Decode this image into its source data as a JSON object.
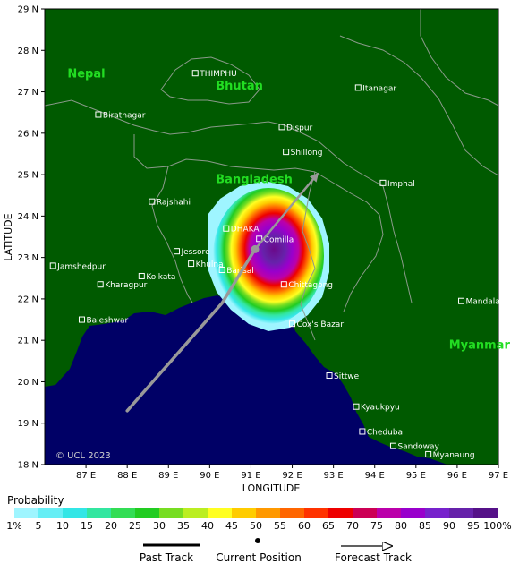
{
  "axes": {
    "ylabel": "LATITUDE",
    "xlabel": "LONGITUDE",
    "lat_ticks": [
      "29 N",
      "28 N",
      "27 N",
      "26 N",
      "25 N",
      "24 N",
      "23 N",
      "22 N",
      "21 N",
      "20 N",
      "19 N",
      "18 N"
    ],
    "lon_ticks": [
      "87 E",
      "88 E",
      "89 E",
      "90 E",
      "91 E",
      "92 E",
      "93 E",
      "94 E",
      "95 E",
      "96 E",
      "97 E"
    ]
  },
  "countries": [
    {
      "name": "Nepal",
      "lon": 86.55,
      "lat": 27.35
    },
    {
      "name": "Bhutan",
      "lon": 90.15,
      "lat": 27.05
    },
    {
      "name": "Bangladesh",
      "lon": 90.15,
      "lat": 24.8
    },
    {
      "name": "Myanmar",
      "lon": 95.8,
      "lat": 20.8
    }
  ],
  "cities": [
    {
      "name": "THIMPHU",
      "lon": 89.65,
      "lat": 27.45
    },
    {
      "name": "Itanagar",
      "lon": 93.6,
      "lat": 27.1
    },
    {
      "name": "Biratnagar",
      "lon": 87.3,
      "lat": 26.45
    },
    {
      "name": "Dispur",
      "lon": 91.75,
      "lat": 26.15
    },
    {
      "name": "Shillong",
      "lon": 91.85,
      "lat": 25.55
    },
    {
      "name": "Imphal",
      "lon": 94.2,
      "lat": 24.8
    },
    {
      "name": "Rajshahi",
      "lon": 88.6,
      "lat": 24.35
    },
    {
      "name": "DHAKA",
      "lon": 90.4,
      "lat": 23.7
    },
    {
      "name": "Comilla",
      "lon": 91.2,
      "lat": 23.45
    },
    {
      "name": "Jessore",
      "lon": 89.2,
      "lat": 23.15
    },
    {
      "name": "Khulna",
      "lon": 89.55,
      "lat": 22.85
    },
    {
      "name": "Barisal",
      "lon": 90.3,
      "lat": 22.7
    },
    {
      "name": "Jamshedpur",
      "lon": 86.2,
      "lat": 22.8
    },
    {
      "name": "Kolkata",
      "lon": 88.35,
      "lat": 22.55
    },
    {
      "name": "Kharagpur",
      "lon": 87.35,
      "lat": 22.35
    },
    {
      "name": "Chittagong",
      "lon": 91.8,
      "lat": 22.35
    },
    {
      "name": "Mandalay",
      "lon": 96.1,
      "lat": 21.95
    },
    {
      "name": "Baleshwar",
      "lon": 86.9,
      "lat": 21.5
    },
    {
      "name": "Cox's Bazar",
      "lon": 92.0,
      "lat": 21.4
    },
    {
      "name": "Sittwe",
      "lon": 92.9,
      "lat": 20.15
    },
    {
      "name": "Kyaukpyu",
      "lon": 93.55,
      "lat": 19.4
    },
    {
      "name": "Cheduba",
      "lon": 93.7,
      "lat": 18.8
    },
    {
      "name": "Sandoway",
      "lon": 94.45,
      "lat": 18.45
    },
    {
      "name": "Myanaung",
      "lon": 95.3,
      "lat": 18.25
    }
  ],
  "track": {
    "past": [
      [
        88.0,
        19.3
      ],
      [
        90.3,
        21.9
      ],
      [
        91.1,
        23.2
      ]
    ],
    "current": [
      91.1,
      23.2
    ],
    "forecast": [
      [
        91.1,
        23.2
      ],
      [
        92.6,
        25.0
      ]
    ]
  },
  "copyright": "© UCL 2023",
  "legend": {
    "title": "Probability",
    "labels": [
      "1%",
      "5",
      "10",
      "15",
      "20",
      "25",
      "30",
      "35",
      "40",
      "45",
      "50",
      "55",
      "60",
      "65",
      "70",
      "75",
      "80",
      "85",
      "90",
      "95",
      "100%"
    ],
    "colors": [
      "#9ff5ff",
      "#66eef5",
      "#33e6e6",
      "#33e6a0",
      "#33dd55",
      "#22cc22",
      "#77dd22",
      "#bbee22",
      "#ffff22",
      "#ffcc00",
      "#ff9900",
      "#ff6600",
      "#ff3300",
      "#ee0000",
      "#cc0055",
      "#bb00aa",
      "#9900cc",
      "#7722cc",
      "#6622aa",
      "#551188"
    ],
    "keys": [
      "Past Track",
      "Current Position",
      "Forecast Track"
    ]
  },
  "colors": {
    "land": "#005a00",
    "sea": "#000066",
    "border": "#8a9a8a",
    "city": "#ffffff",
    "country": "#22dd22",
    "track": "#999999"
  }
}
